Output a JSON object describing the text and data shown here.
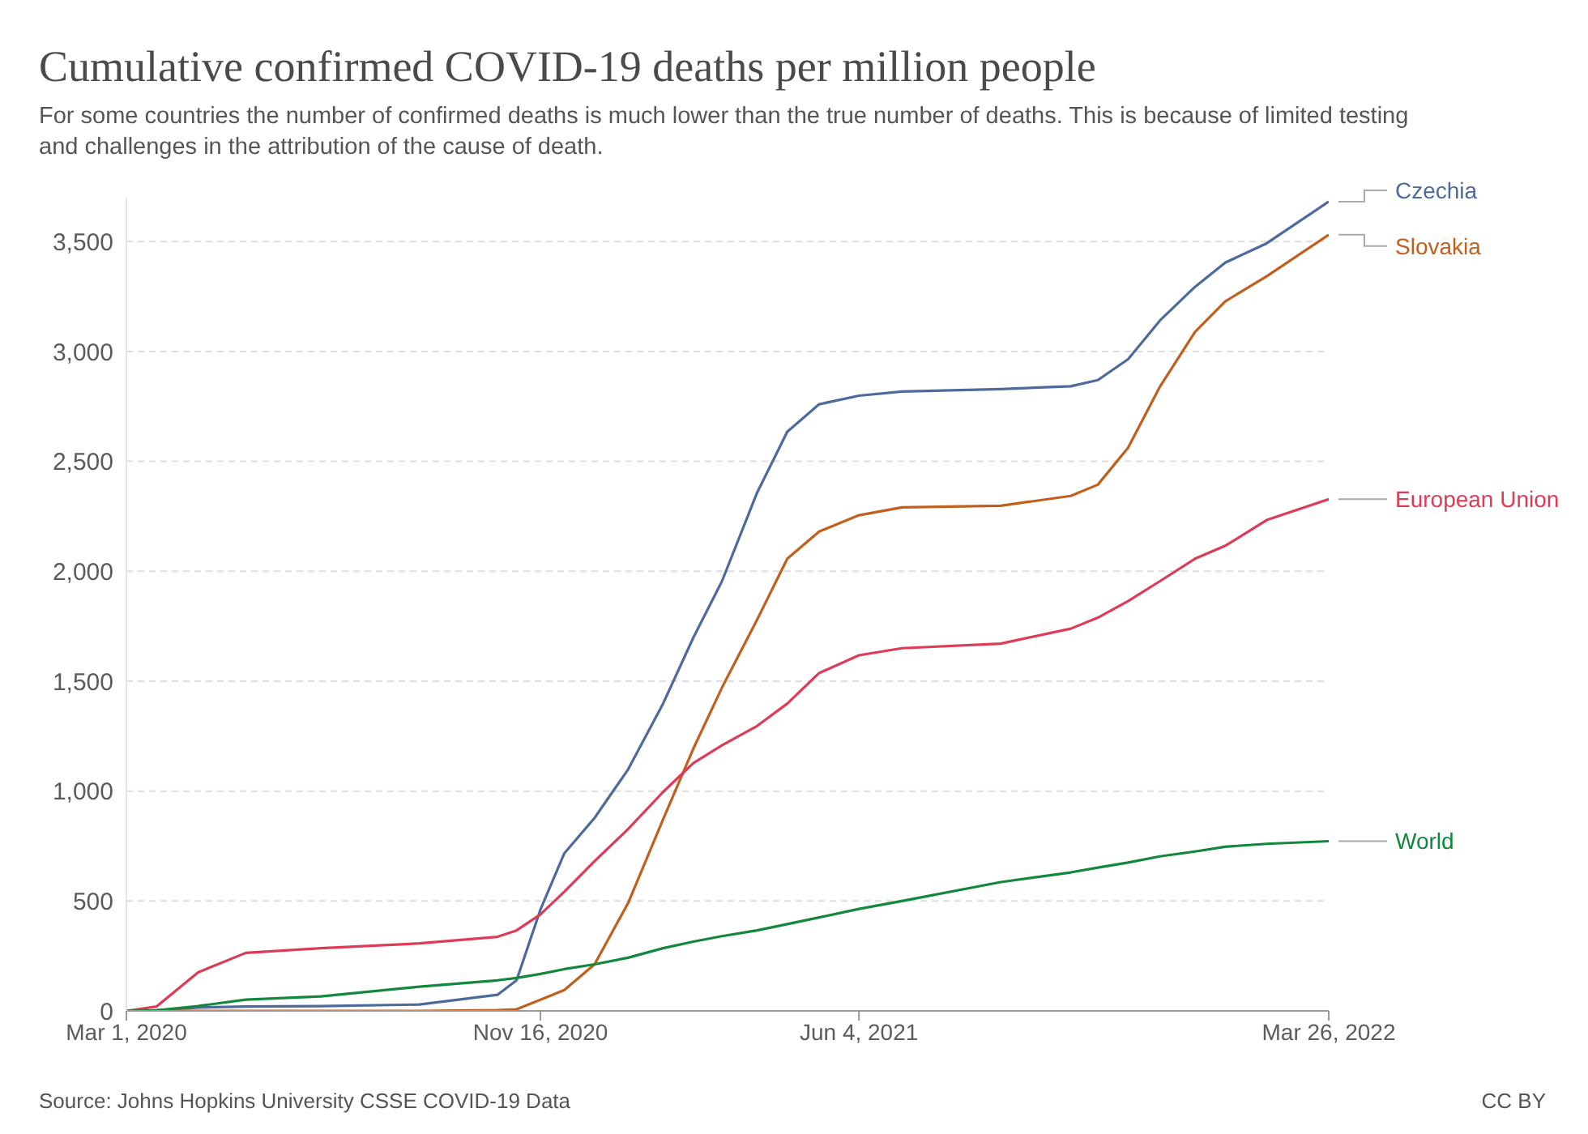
{
  "chart_data": {
    "type": "line",
    "title": "Cumulative confirmed COVID-19 deaths per million people",
    "subtitle": "For some countries the number of confirmed deaths is much lower than the true number of deaths. This is because of limited testing and challenges in the attribution of the cause of death.",
    "x": [
      "2020-03-01",
      "2020-03-20",
      "2020-04-15",
      "2020-05-15",
      "2020-07-01",
      "2020-09-01",
      "2020-10-20",
      "2020-11-01",
      "2020-11-16",
      "2020-12-01",
      "2020-12-20",
      "2021-01-10",
      "2021-02-01",
      "2021-02-20",
      "2021-03-10",
      "2021-04-01",
      "2021-04-20",
      "2021-05-10",
      "2021-06-04",
      "2021-07-01",
      "2021-09-01",
      "2021-10-15",
      "2021-11-01",
      "2021-11-20",
      "2021-12-10",
      "2022-01-01",
      "2022-01-20",
      "2022-02-15",
      "2022-03-26"
    ],
    "series": [
      {
        "name": "Czechia",
        "color": "#4c6a9c",
        "values": [
          0,
          2,
          15,
          20,
          22,
          29,
          73,
          139,
          461,
          717,
          878,
          1098,
          1398,
          1698,
          1955,
          2357,
          2635,
          2760,
          2799,
          2818,
          2829,
          2842,
          2870,
          2965,
          3141,
          3294,
          3404,
          3492,
          3682
        ]
      },
      {
        "name": "Slovakia",
        "color": "#c15f1e",
        "values": [
          0,
          0,
          0,
          0,
          0,
          0,
          3,
          7,
          51,
          95,
          212,
          490,
          871,
          1193,
          1471,
          1779,
          2057,
          2181,
          2255,
          2291,
          2298,
          2343,
          2394,
          2562,
          2840,
          3089,
          3228,
          3342,
          3531
        ]
      },
      {
        "name": "European Union",
        "color": "#de3b57",
        "values": [
          0,
          20,
          175,
          264,
          285,
          307,
          337,
          366,
          439,
          542,
          681,
          827,
          996,
          1127,
          1208,
          1296,
          1398,
          1537,
          1618,
          1650,
          1671,
          1739,
          1789,
          1864,
          1955,
          2057,
          2116,
          2233,
          2328
        ]
      },
      {
        "name": "World",
        "color": "#11883b",
        "values": [
          0,
          2,
          22,
          51,
          66,
          110,
          139,
          150,
          168,
          190,
          212,
          242,
          285,
          315,
          340,
          366,
          395,
          425,
          464,
          500,
          586,
          630,
          652,
          675,
          703,
          725,
          747,
          760,
          772
        ]
      }
    ],
    "xlim": [
      "2020-03-01",
      "2022-03-26"
    ],
    "xticks": [
      {
        "value": "2020-03-01",
        "label": "Mar 1, 2020"
      },
      {
        "value": "2020-11-16",
        "label": "Nov 16, 2020"
      },
      {
        "value": "2021-06-04",
        "label": "Jun 4, 2021"
      },
      {
        "value": "2022-03-26",
        "label": "Mar 26, 2022"
      }
    ],
    "yticks": [
      {
        "value": 0,
        "label": "0"
      },
      {
        "value": 500,
        "label": "500"
      },
      {
        "value": 1000,
        "label": "1,000"
      },
      {
        "value": 1500,
        "label": "1,500"
      },
      {
        "value": 2000,
        "label": "2,000"
      },
      {
        "value": 2500,
        "label": "2,500"
      },
      {
        "value": 3000,
        "label": "3,000"
      },
      {
        "value": 3500,
        "label": "3,500"
      }
    ],
    "ylim": [
      0,
      3700
    ],
    "grid": "y",
    "legend": "right",
    "annotations": [
      "Source: Johns Hopkins University CSSE COVID-19 Data",
      "CC BY"
    ]
  }
}
